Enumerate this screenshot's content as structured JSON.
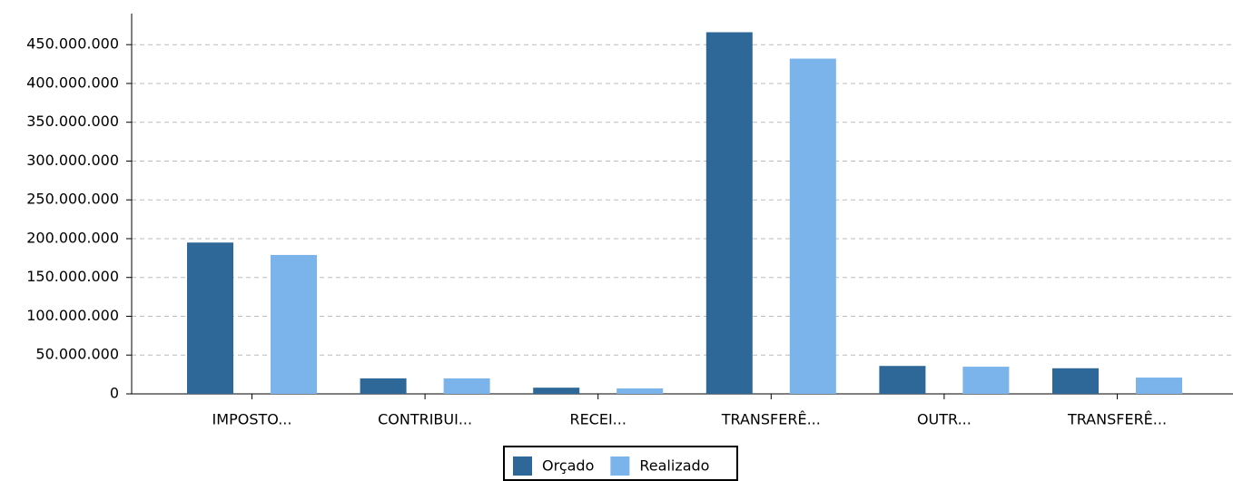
{
  "chart_data": {
    "type": "bar",
    "categories": [
      "IMPOSTO...",
      "CONTRIBUI...",
      "RECEI...",
      "TRANSFERÊ...",
      "OUTR...",
      "TRANSFERÊ..."
    ],
    "series": [
      {
        "name": "Orçado",
        "color": "#2e6898",
        "values": [
          195000000,
          20000000,
          8000000,
          466000000,
          36000000,
          33000000
        ]
      },
      {
        "name": "Realizado",
        "color": "#7ab4eb",
        "values": [
          179000000,
          20000000,
          7000000,
          432000000,
          35000000,
          21000000
        ]
      }
    ],
    "ylim": [
      0,
      490000000
    ],
    "yticks": [
      0,
      {
        "value": 50000000,
        "label": "50.000.000"
      },
      {
        "value": 100000000,
        "label": "100.000.000"
      },
      {
        "value": 150000000,
        "label": "150.000.000"
      },
      {
        "value": 200000000,
        "label": "200.000.000"
      },
      {
        "value": 250000000,
        "label": "250.000.000"
      },
      {
        "value": 300000000,
        "label": "300.000.000"
      },
      {
        "value": 350000000,
        "label": "350.000.000"
      },
      {
        "value": 400000000,
        "label": "400.000.000"
      },
      {
        "value": 450000000,
        "label": "450.000.000"
      }
    ],
    "grid": true,
    "legend": "bottom"
  }
}
